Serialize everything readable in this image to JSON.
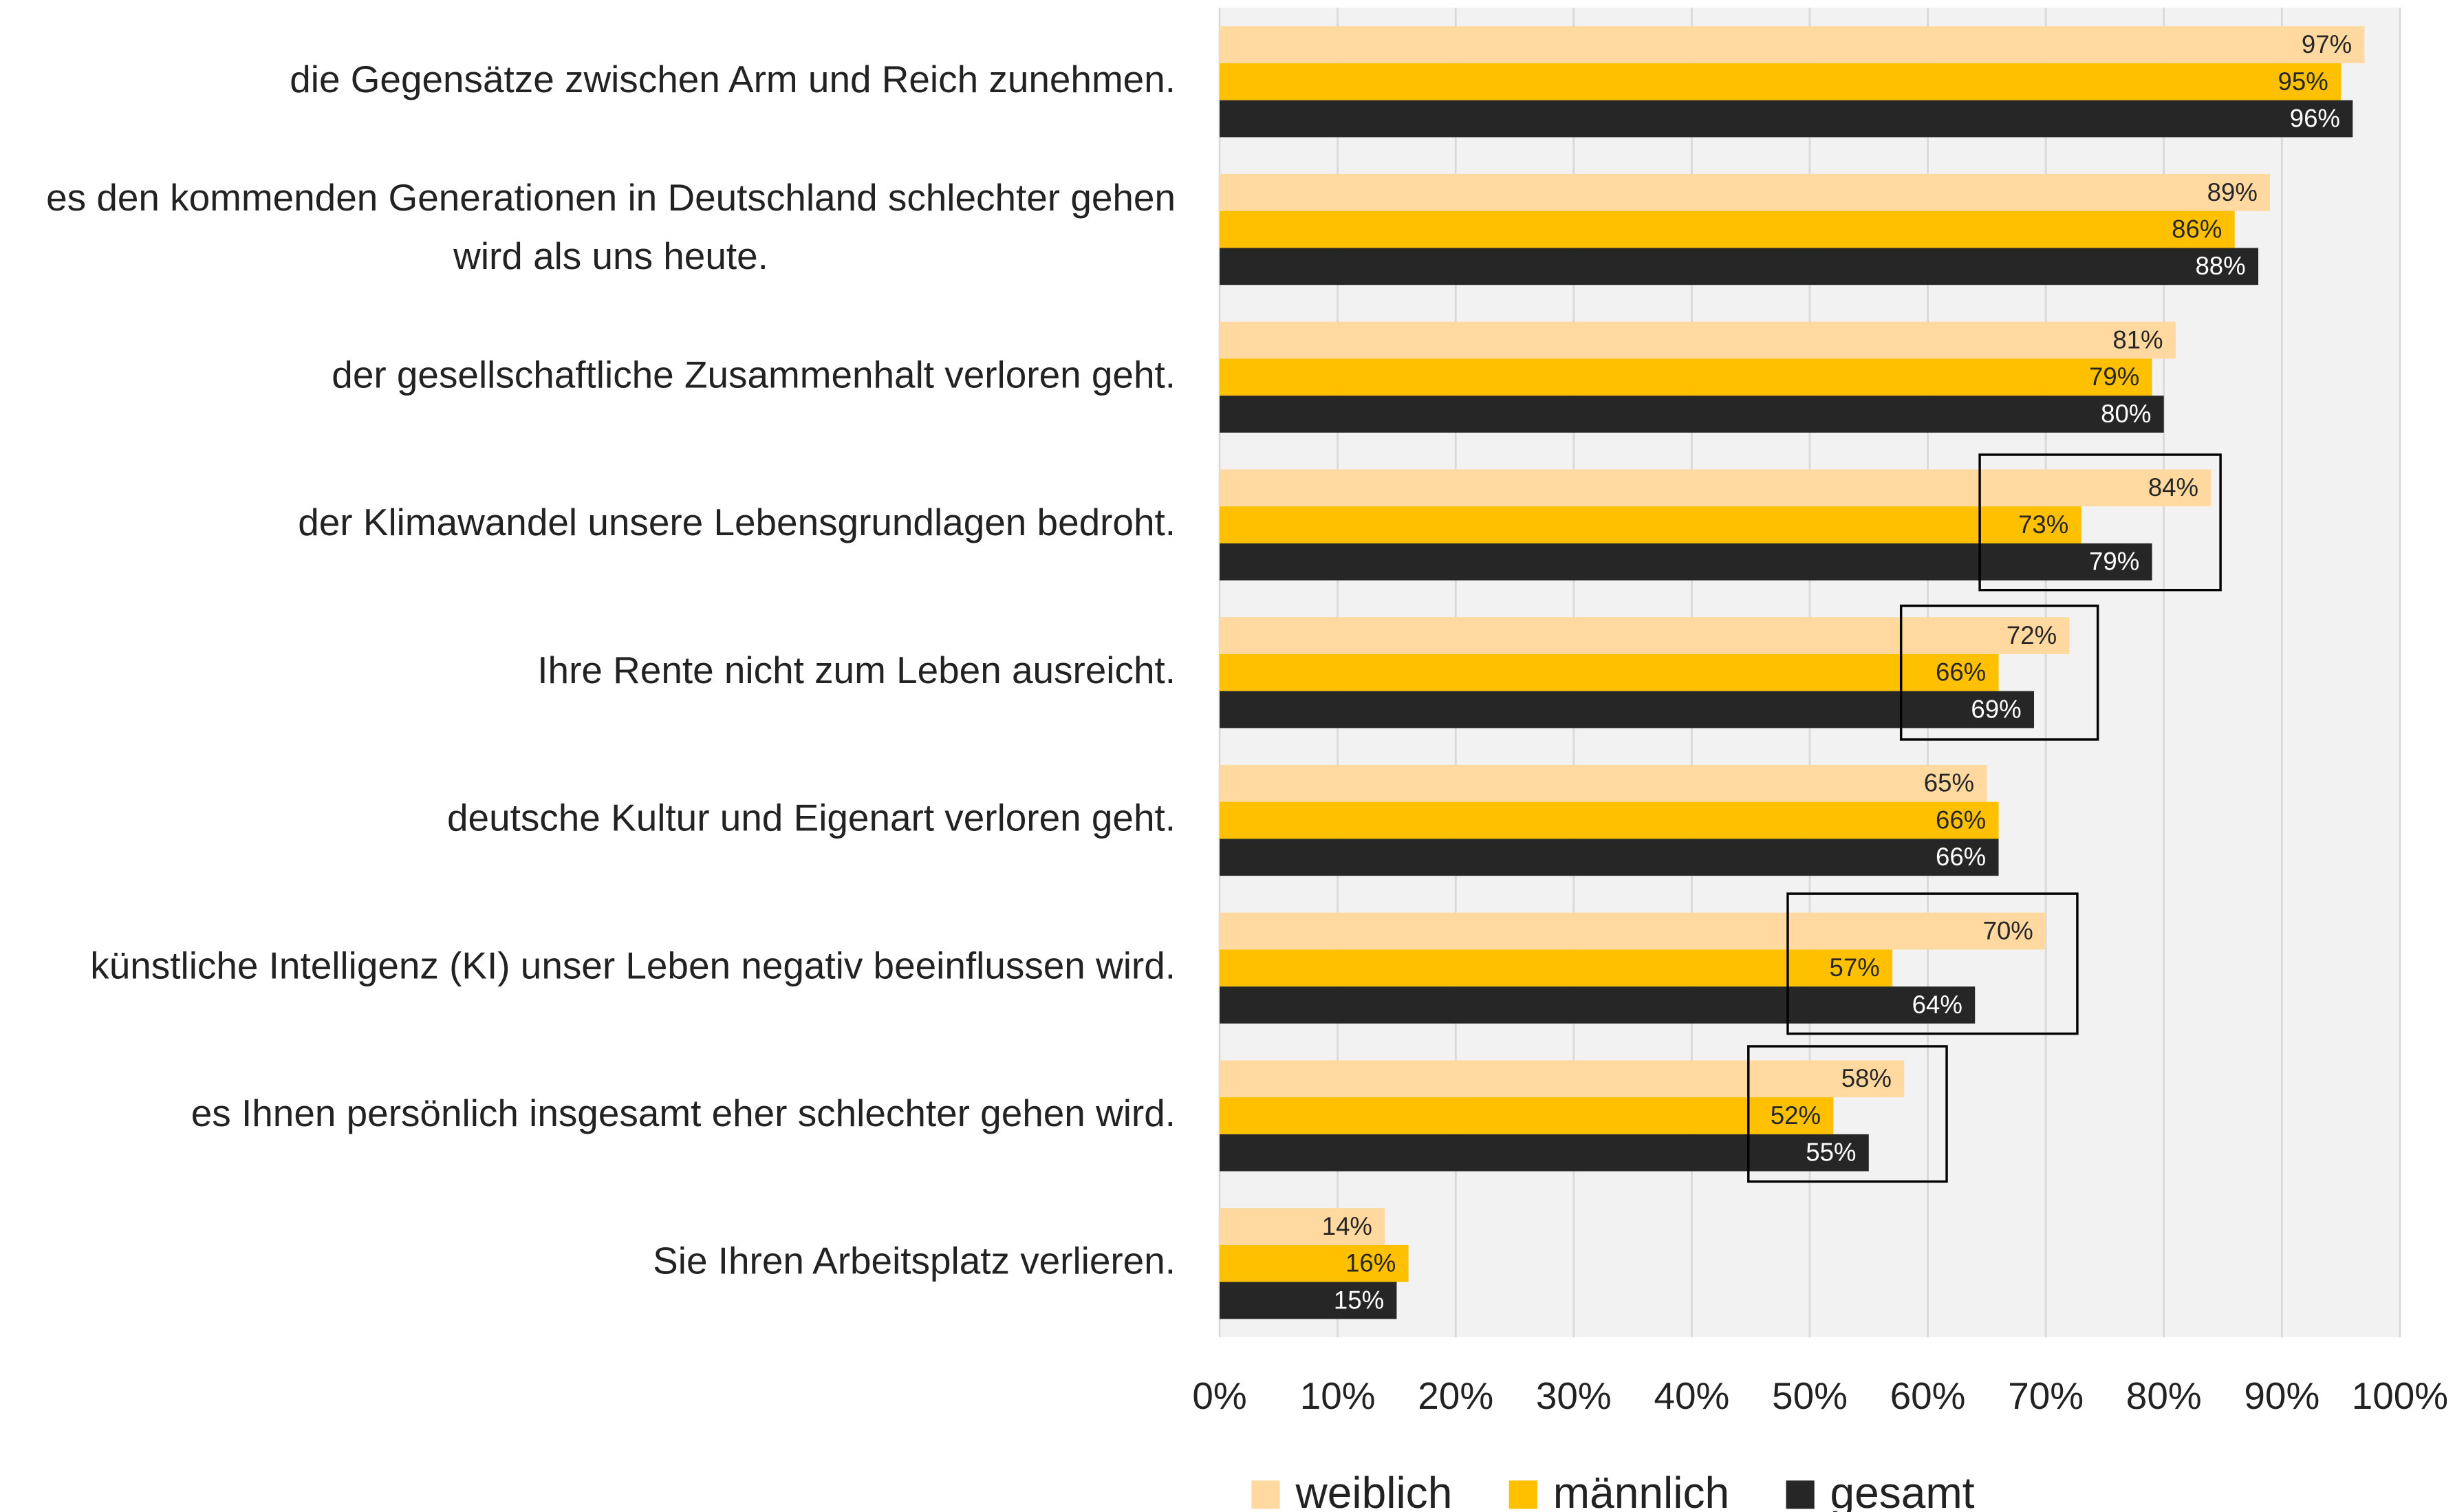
{
  "chart_data": {
    "type": "barh",
    "categories": [
      "die Gegensätze zwischen Arm und Reich zunehmen.",
      "es den kommenden Generationen in Deutschland schlechter gehen wird als uns heute.",
      "der gesellschaftliche Zusammenhalt verloren geht.",
      "der Klimawandel unsere Lebensgrundlagen bedroht.",
      "Ihre Rente nicht zum Leben ausreicht.",
      "deutsche Kultur und Eigenart verloren geht.",
      "künstliche Intelligenz (KI) unser Leben negativ beeinflussen wird.",
      "es Ihnen persönlich insgesamt eher schlechter gehen wird.",
      "Sie Ihren Arbeitsplatz verlieren."
    ],
    "series": [
      {
        "name": "weiblich",
        "color": "#ffd9a0",
        "label_color": "#262626",
        "values": [
          97,
          89,
          81,
          84,
          72,
          65,
          70,
          58,
          14
        ],
        "value_labels": [
          "97%",
          "89%",
          "81%",
          "84%",
          "72%",
          "65%",
          "70%",
          "58%",
          "14%"
        ]
      },
      {
        "name": "männlich",
        "color": "#ffc000",
        "label_color": "#262626",
        "values": [
          95,
          86,
          79,
          73,
          66,
          66,
          57,
          52,
          16
        ],
        "value_labels": [
          "95%",
          "86%",
          "79%",
          "73%",
          "66%",
          "66%",
          "57%",
          "52%",
          "16%"
        ]
      },
      {
        "name": "gesamt",
        "color": "#262626",
        "label_color": "#ffffff",
        "values": [
          96,
          88,
          80,
          79,
          69,
          66,
          64,
          55,
          15
        ],
        "value_labels": [
          "96%",
          "88%",
          "80%",
          "79%",
          "69%",
          "66%",
          "64%",
          "55%",
          "15%"
        ]
      }
    ],
    "xlim": [
      0,
      100
    ],
    "xticks": [
      {
        "value": 0,
        "label": "0%"
      },
      {
        "value": 10,
        "label": "10%"
      },
      {
        "value": 20,
        "label": "20%"
      },
      {
        "value": 30,
        "label": "30%"
      },
      {
        "value": 40,
        "label": "40%"
      },
      {
        "value": 50,
        "label": "50%"
      },
      {
        "value": 60,
        "label": "60%"
      },
      {
        "value": 70,
        "label": "70%"
      },
      {
        "value": 80,
        "label": "80%"
      },
      {
        "value": 90,
        "label": "90%"
      },
      {
        "value": 100,
        "label": "100%"
      }
    ],
    "grid": true,
    "legend": "bottom"
  }
}
